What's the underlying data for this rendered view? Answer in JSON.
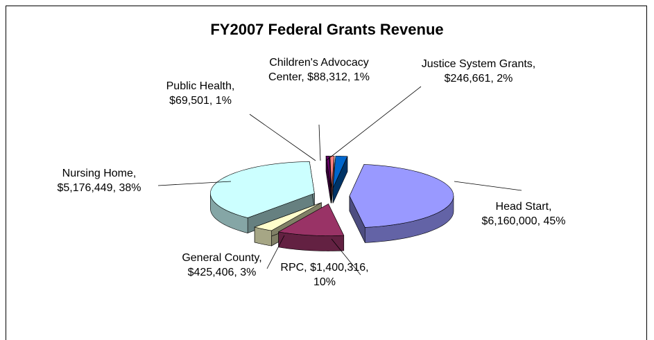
{
  "chart_data": {
    "type": "pie3d",
    "title": "FY2007 Federal Grants Revenue",
    "categories": [
      "Head Start",
      "RPC",
      "General County",
      "Nursing Home",
      "Public Health",
      "Children's Advocacy Center",
      "Justice System Grants"
    ],
    "values": [
      6160000,
      1400316,
      425406,
      5176449,
      69501,
      88312,
      246661
    ],
    "value_labels": [
      "$6,160,000",
      "$1,400,316",
      "$425,406",
      "$5,176,449",
      "$69,501",
      "$88,312",
      "$246,661"
    ],
    "percentages": [
      45,
      10,
      3,
      38,
      1,
      1,
      2
    ],
    "percentage_labels": [
      "45%",
      "10%",
      "3%",
      "38%",
      "1%",
      "1%",
      "2%"
    ],
    "label_separator": ", ",
    "colors": [
      "#9999ff",
      "#993366",
      "#ffffcc",
      "#ccffff",
      "#660066",
      "#ff8080",
      "#0066cc"
    ]
  }
}
